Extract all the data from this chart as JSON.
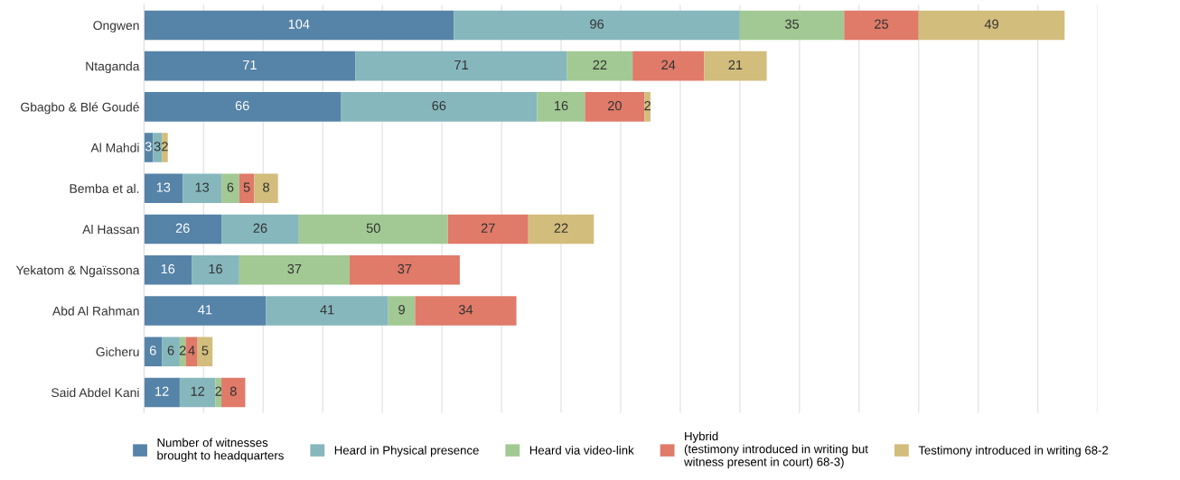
{
  "chart_data": {
    "type": "bar",
    "orientation": "horizontal",
    "stacked": true,
    "data_labels": true,
    "grid": "x",
    "legend": "bottom",
    "tick_labels": "y",
    "categories": [
      "Ongwen",
      "Ntaganda",
      "Gbagbo & Blé Goudé",
      "Al Mahdi",
      "Bemba et al.",
      "Al Hassan",
      "Yekatom & Ngaïssona",
      "Abd Al Rahman",
      "Gicheru",
      "Said Abdel Kani"
    ],
    "xlim": [
      0,
      320
    ],
    "xticks": [
      {
        "value": 0,
        "label": null
      },
      {
        "value": 20,
        "label": null
      },
      {
        "value": 40,
        "label": null
      },
      {
        "value": 60,
        "label": null
      },
      {
        "value": 80,
        "label": null
      },
      {
        "value": 100,
        "label": null
      },
      {
        "value": 120,
        "label": null
      },
      {
        "value": 140,
        "label": null
      },
      {
        "value": 160,
        "label": null
      },
      {
        "value": 180,
        "label": null
      },
      {
        "value": 200,
        "label": null
      },
      {
        "value": 220,
        "label": null
      },
      {
        "value": 240,
        "label": null
      },
      {
        "value": 260,
        "label": null
      },
      {
        "value": 280,
        "label": null
      },
      {
        "value": 300,
        "label": null
      },
      {
        "value": 320,
        "label": null
      }
    ],
    "series": [
      {
        "name": "Number of witnesses\nbrought to headquarters",
        "color": "#5683a8",
        "values": [
          104,
          71,
          66,
          3,
          13,
          26,
          16,
          41,
          6,
          12
        ]
      },
      {
        "name": "Heard in Physical presence",
        "color": "#86b7bd",
        "values": [
          96,
          71,
          66,
          3,
          13,
          26,
          16,
          41,
          6,
          12
        ]
      },
      {
        "name": "Heard via video-link",
        "color": "#a2c993",
        "values": [
          35,
          22,
          16,
          null,
          6,
          50,
          37,
          9,
          2,
          2
        ]
      },
      {
        "name": "Hybrid\n(testimony introduced in writing but\nwitness present in court) 68-3)",
        "color": "#e07a69",
        "values": [
          25,
          24,
          20,
          null,
          5,
          27,
          37,
          34,
          4,
          8
        ]
      },
      {
        "name": "Testimony introduced in writing 68-2",
        "color": "#d2bd7c",
        "values": [
          49,
          21,
          2,
          2,
          8,
          22,
          null,
          null,
          5,
          null
        ]
      }
    ]
  }
}
